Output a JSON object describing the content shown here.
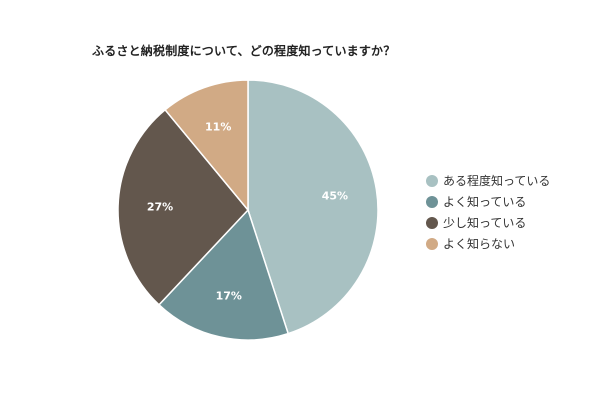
{
  "chart_data": {
    "type": "pie",
    "title": "ふるさと納税制度について、どの程度知っていますか？",
    "categories": [
      "ある程度知っている",
      "よく知っている",
      "少し知っている",
      "よく知らない"
    ],
    "values": [
      45,
      17,
      27,
      11
    ],
    "labels": [
      "45%",
      "17%",
      "27%",
      "11%"
    ],
    "colors": [
      "#a8c1c2",
      "#6e9297",
      "#63574d",
      "#d1aa85"
    ],
    "legend_position": "right",
    "start_angle": "top",
    "direction": "clockwise"
  }
}
